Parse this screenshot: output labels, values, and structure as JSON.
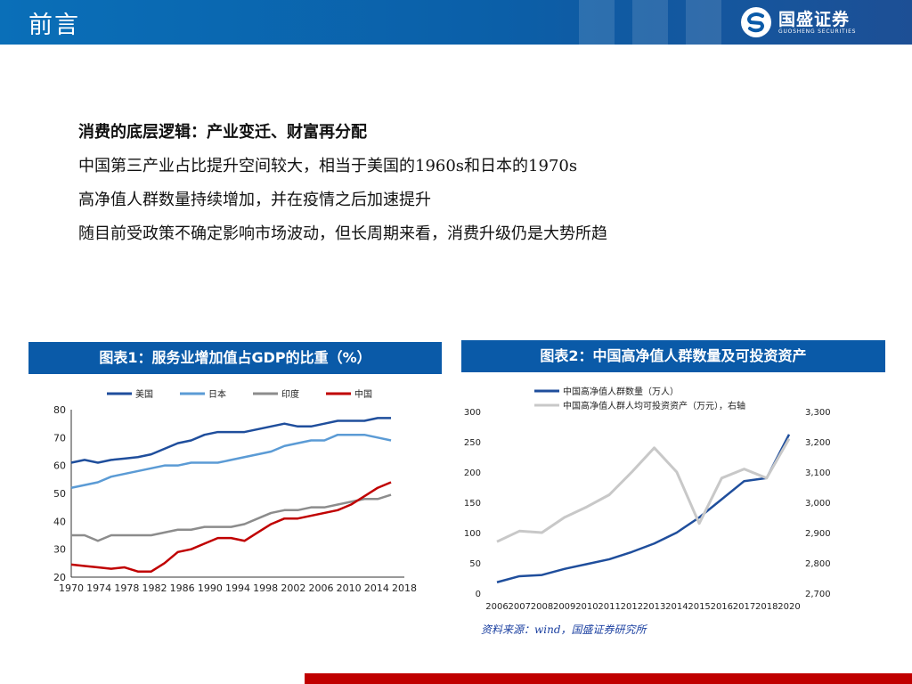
{
  "header": {
    "title": "前言",
    "logo_name": "国盛证券",
    "logo_sub": "GUOSHENG SECURITIES",
    "color": "#0a6fb8"
  },
  "bullets": [
    "消费的底层逻辑：产业变迁、财富再分配",
    "中国第三产业占比提升空间较大，相当于美国的1960s和日本的1970s",
    "高净值人群数量持续增加，并在疫情之后加速提升",
    "随目前受政策不确定影响市场波动，但长周期来看，消费升级仍是大势所趋"
  ],
  "figure1": {
    "title": "图表1：服务业增加值占GDP的比重（%）"
  },
  "figure2": {
    "title": "图表2：中国高净值人群数量及可投资资产"
  },
  "source": "资料来源：wind，国盛证券研究所",
  "chart_data": [
    {
      "type": "line",
      "ylim": [
        20,
        80
      ],
      "yticks": [
        20,
        30,
        40,
        50,
        60,
        70,
        80
      ],
      "xlim": [
        1970,
        2020
      ],
      "xticks": [
        "1970",
        "1974",
        "1978",
        "1982",
        "1986",
        "1990",
        "1994",
        "1998",
        "2002",
        "2006",
        "2010",
        "2014",
        "2018"
      ],
      "legend_position": "top",
      "series": [
        {
          "name": "美国",
          "color": "#1f4e9c",
          "x": [
            1970,
            1972,
            1974,
            1976,
            1978,
            1980,
            1982,
            1984,
            1986,
            1988,
            1990,
            1992,
            1994,
            1996,
            1998,
            2000,
            2002,
            2004,
            2006,
            2008,
            2010,
            2012,
            2014,
            2016,
            2018
          ],
          "values": [
            61,
            62,
            61,
            62,
            62.5,
            63,
            64,
            66,
            68,
            69,
            71,
            72,
            72,
            72,
            73,
            74,
            75,
            74,
            74,
            75,
            76,
            76,
            76,
            77,
            77
          ]
        },
        {
          "name": "日本",
          "color": "#5b9bd5",
          "x": [
            1970,
            1972,
            1974,
            1976,
            1978,
            1980,
            1982,
            1984,
            1986,
            1988,
            1990,
            1992,
            1994,
            1996,
            1998,
            2000,
            2002,
            2004,
            2006,
            2008,
            2010,
            2012,
            2014,
            2016,
            2018
          ],
          "values": [
            52,
            53,
            54,
            56,
            57,
            58,
            59,
            60,
            60,
            61,
            61,
            61,
            62,
            63,
            64,
            65,
            67,
            68,
            69,
            69,
            71,
            71,
            71,
            70,
            69
          ]
        },
        {
          "name": "印度",
          "color": "#8c8c8c",
          "x": [
            1970,
            1972,
            1974,
            1976,
            1978,
            1980,
            1982,
            1984,
            1986,
            1988,
            1990,
            1992,
            1994,
            1996,
            1998,
            2000,
            2002,
            2004,
            2006,
            2008,
            2010,
            2012,
            2014,
            2016,
            2018
          ],
          "values": [
            35,
            35,
            33,
            35,
            35,
            35,
            35,
            36,
            37,
            37,
            38,
            38,
            38,
            39,
            41,
            43,
            44,
            44,
            45,
            45,
            46,
            47,
            48,
            48,
            49.5
          ]
        },
        {
          "name": "中国",
          "color": "#c00000",
          "x": [
            1970,
            1972,
            1974,
            1976,
            1978,
            1980,
            1982,
            1984,
            1986,
            1988,
            1990,
            1992,
            1994,
            1996,
            1998,
            2000,
            2002,
            2004,
            2006,
            2008,
            2010,
            2012,
            2014,
            2016,
            2018
          ],
          "values": [
            24.5,
            24,
            23.5,
            23,
            23.5,
            22,
            22,
            25,
            29,
            30,
            32,
            34,
            34,
            33,
            36,
            39,
            41,
            41,
            42,
            43,
            44,
            46,
            49,
            52,
            54
          ]
        }
      ]
    },
    {
      "type": "line",
      "x": [
        "2006",
        "2007",
        "2008",
        "2009",
        "2010",
        "2011",
        "2012",
        "2013",
        "2014",
        "2015",
        "2016",
        "2017",
        "2018",
        "2020"
      ],
      "ylim_left": [
        0,
        300
      ],
      "yticks_left": [
        0,
        50,
        100,
        150,
        200,
        250,
        300
      ],
      "ylim_right": [
        2700,
        3300
      ],
      "yticks_right": [
        "2,700",
        "2,800",
        "2,900",
        "3,000",
        "3,100",
        "3,200",
        "3,300"
      ],
      "legend_position": "top",
      "series": [
        {
          "name": "中国高净值人群数量（万人）",
          "axis": "left",
          "color": "#1f4e9c",
          "values": [
            18,
            28,
            30,
            40,
            48,
            56,
            68,
            82,
            100,
            125,
            155,
            185,
            190,
            262
          ]
        },
        {
          "name": "中国高净值人群人均可投资资产（万元），右轴",
          "axis": "right",
          "color": "#c8c8c8",
          "values": [
            2870,
            2905,
            2900,
            2950,
            2985,
            3025,
            3100,
            3180,
            3100,
            2930,
            3080,
            3110,
            3080,
            3210
          ]
        }
      ]
    }
  ]
}
